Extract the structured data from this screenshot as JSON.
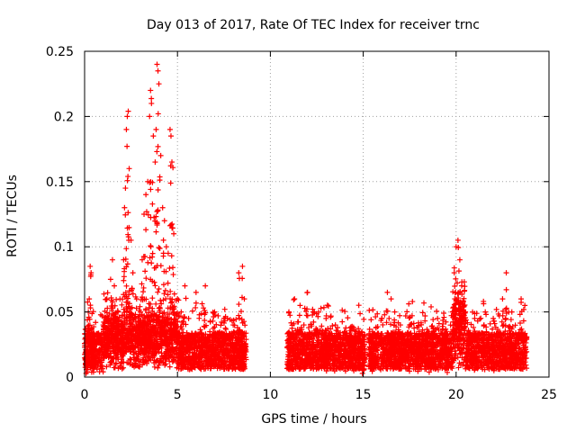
{
  "chart_data": {
    "type": "scatter",
    "title": "Day 013 of 2017, Rate Of TEC Index for receiver trnc",
    "xlabel": "GPS time / hours",
    "ylabel": "ROTI / TECUs",
    "xlim": [
      0,
      25
    ],
    "ylim": [
      0,
      0.25
    ],
    "x_ticks": [
      0,
      5,
      10,
      15,
      20,
      25
    ],
    "x_tick_labels": [
      "0",
      "5",
      "10",
      "15",
      "20",
      "25"
    ],
    "y_ticks": [
      0,
      0.05,
      0.1,
      0.15,
      0.2,
      0.25
    ],
    "y_tick_labels": [
      "0",
      "0.05",
      "0.1",
      "0.15",
      "0.2",
      "0.25"
    ],
    "grid": true,
    "marker": "+",
    "color": "#ff0000",
    "series": [
      {
        "name": "ROTI",
        "points": [
          [
            0.1,
            0.02
          ],
          [
            0.15,
            0.035
          ],
          [
            0.2,
            0.05
          ],
          [
            0.25,
            0.06
          ],
          [
            0.3,
            0.085
          ],
          [
            0.35,
            0.08
          ],
          [
            0.4,
            0.03
          ],
          [
            0.5,
            0.025
          ],
          [
            0.8,
            0.03
          ],
          [
            1.0,
            0.04
          ],
          [
            1.2,
            0.06
          ],
          [
            1.4,
            0.075
          ],
          [
            1.5,
            0.09
          ],
          [
            1.6,
            0.07
          ],
          [
            1.8,
            0.05
          ],
          [
            2.0,
            0.04
          ],
          [
            2.1,
            0.09
          ],
          [
            2.15,
            0.13
          ],
          [
            2.2,
            0.145
          ],
          [
            2.25,
            0.19
          ],
          [
            2.3,
            0.2
          ],
          [
            2.35,
            0.204
          ],
          [
            2.4,
            0.16
          ],
          [
            2.5,
            0.105
          ],
          [
            2.6,
            0.08
          ],
          [
            2.8,
            0.06
          ],
          [
            3.0,
            0.05
          ],
          [
            3.1,
            0.09
          ],
          [
            3.2,
            0.125
          ],
          [
            3.3,
            0.14
          ],
          [
            3.4,
            0.15
          ],
          [
            3.5,
            0.2
          ],
          [
            3.55,
            0.22
          ],
          [
            3.6,
            0.21
          ],
          [
            3.7,
            0.185
          ],
          [
            3.8,
            0.165
          ],
          [
            3.85,
            0.19
          ],
          [
            3.9,
            0.24
          ],
          [
            3.95,
            0.235
          ],
          [
            4.0,
            0.225
          ],
          [
            4.1,
            0.17
          ],
          [
            4.2,
            0.13
          ],
          [
            4.3,
            0.12
          ],
          [
            4.4,
            0.1
          ],
          [
            4.5,
            0.095
          ],
          [
            4.6,
            0.19
          ],
          [
            4.65,
            0.185
          ],
          [
            4.7,
            0.165
          ],
          [
            4.8,
            0.11
          ],
          [
            5.0,
            0.06
          ],
          [
            5.2,
            0.05
          ],
          [
            5.4,
            0.07
          ],
          [
            5.6,
            0.045
          ],
          [
            6.0,
            0.065
          ],
          [
            6.5,
            0.07
          ],
          [
            7.0,
            0.05
          ],
          [
            7.5,
            0.045
          ],
          [
            8.0,
            0.04
          ],
          [
            8.3,
            0.08
          ],
          [
            8.5,
            0.085
          ],
          [
            8.6,
            0.06
          ],
          [
            11.0,
            0.05
          ],
          [
            11.3,
            0.06
          ],
          [
            11.6,
            0.055
          ],
          [
            12.0,
            0.065
          ],
          [
            12.3,
            0.05
          ],
          [
            13.0,
            0.045
          ],
          [
            13.5,
            0.04
          ],
          [
            14.0,
            0.035
          ],
          [
            14.5,
            0.03
          ],
          [
            15.0,
            0.025
          ],
          [
            15.5,
            0.035
          ],
          [
            16.0,
            0.045
          ],
          [
            16.3,
            0.065
          ],
          [
            16.5,
            0.06
          ],
          [
            17.0,
            0.04
          ],
          [
            17.5,
            0.04
          ],
          [
            18.0,
            0.035
          ],
          [
            18.5,
            0.035
          ],
          [
            19.0,
            0.045
          ],
          [
            19.5,
            0.035
          ],
          [
            19.8,
            0.05
          ],
          [
            19.9,
            0.08
          ],
          [
            20.0,
            0.1
          ],
          [
            20.1,
            0.105
          ],
          [
            20.2,
            0.09
          ],
          [
            20.3,
            0.07
          ],
          [
            20.5,
            0.05
          ],
          [
            21.0,
            0.045
          ],
          [
            21.5,
            0.04
          ],
          [
            22.0,
            0.045
          ],
          [
            22.5,
            0.06
          ],
          [
            22.7,
            0.08
          ],
          [
            23.0,
            0.05
          ],
          [
            23.5,
            0.06
          ],
          [
            23.7,
            0.055
          ]
        ]
      }
    ]
  }
}
